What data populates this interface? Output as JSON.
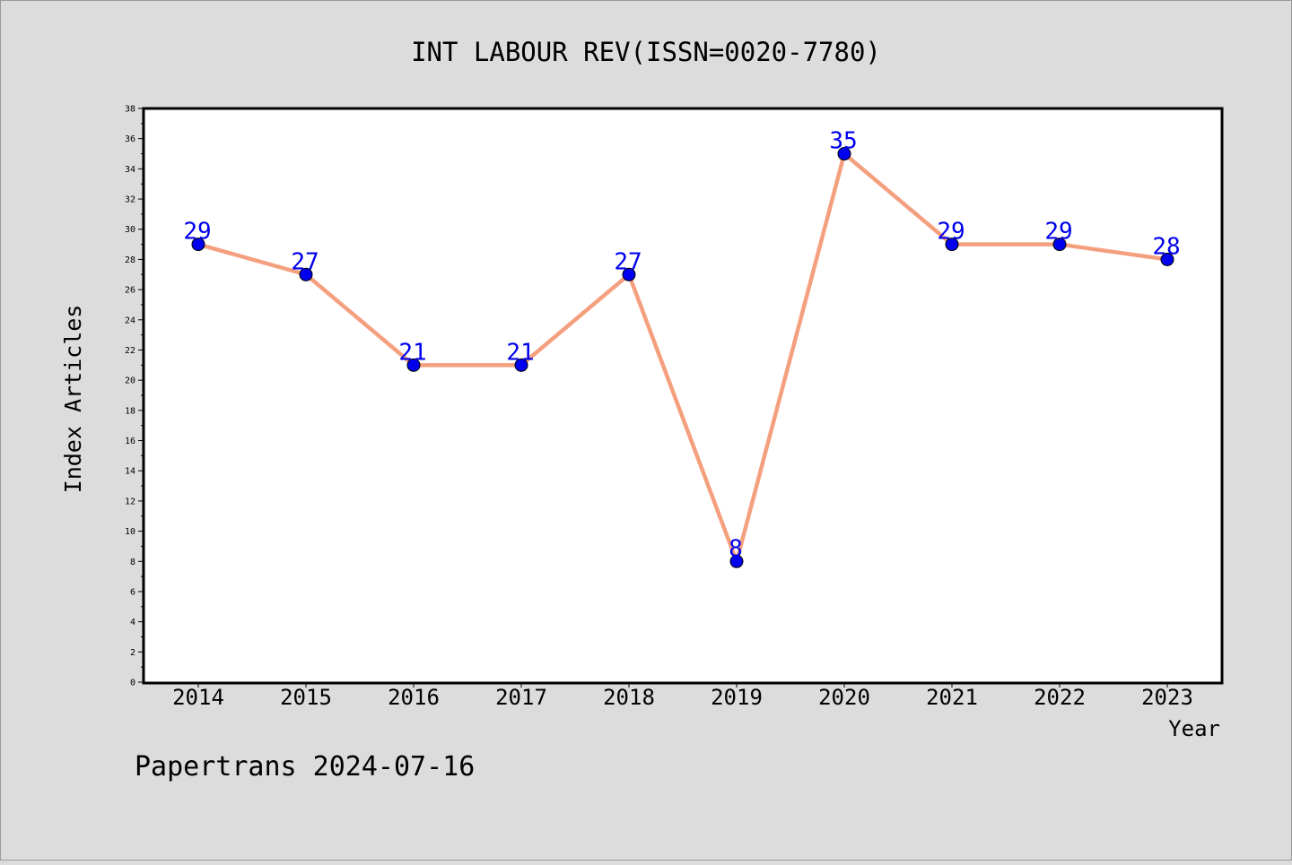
{
  "chart_data": {
    "type": "line",
    "title": "INT LABOUR REV(ISSN=0020-7780)",
    "xlabel": "Year",
    "ylabel": "Index Articles",
    "footer": "Papertrans 2024-07-16",
    "categories": [
      "2014",
      "2015",
      "2016",
      "2017",
      "2018",
      "2019",
      "2020",
      "2021",
      "2022",
      "2023"
    ],
    "values": [
      29,
      27,
      21,
      21,
      27,
      8,
      35,
      29,
      29,
      28
    ],
    "ylim": [
      0,
      38
    ],
    "yticks": [
      "0",
      "2",
      "4",
      "6",
      "8",
      "10",
      "12",
      "14",
      "16",
      "18",
      "20",
      "22",
      "24",
      "26",
      "28",
      "30",
      "32",
      "34",
      "36",
      "38"
    ],
    "grid": false,
    "colors": {
      "line": "#f4a07f",
      "marker": "#0000ee",
      "label": "#0000ee",
      "background": "#dcdcdc",
      "plot_background": "#ffffff"
    }
  }
}
